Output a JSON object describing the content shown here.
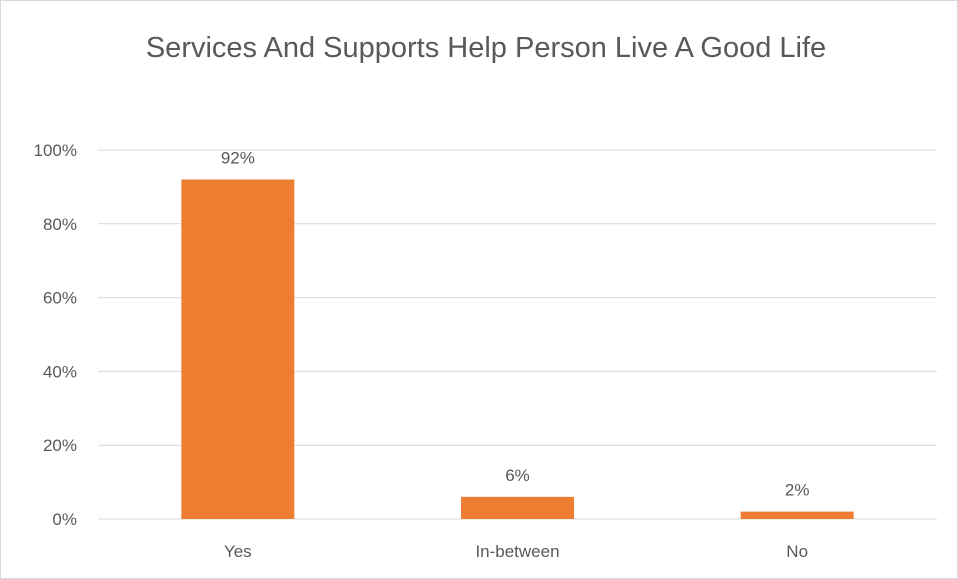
{
  "chart_data": {
    "type": "bar",
    "title": "Services And Supports Help Person Live A Good Life",
    "categories": [
      "Yes",
      "In-between",
      "No"
    ],
    "values": [
      92,
      6,
      2
    ],
    "data_labels": [
      "92%",
      "6%",
      "2%"
    ],
    "xlabel": "",
    "ylabel": "",
    "ylim": [
      0,
      100
    ],
    "yticks": [
      "0%",
      "20%",
      "40%",
      "60%",
      "80%",
      "100%"
    ],
    "grid": true,
    "legend": "none",
    "bar_color": "#ED7D31",
    "grid_color": "#D9D9D9",
    "text_color": "#595959"
  }
}
